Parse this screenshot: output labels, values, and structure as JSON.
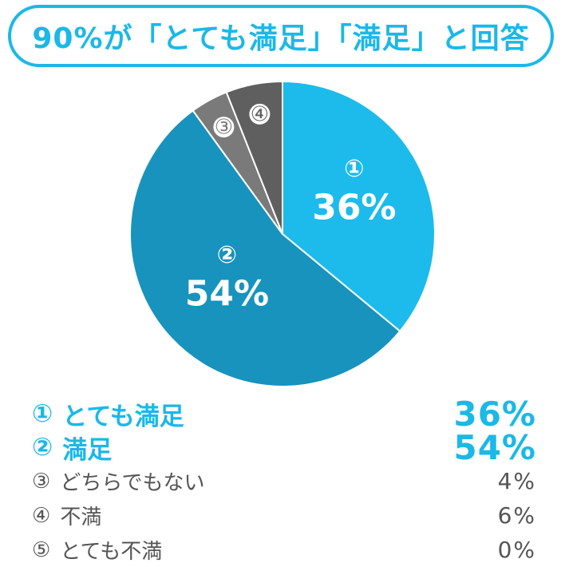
{
  "title": "90%が「とても満足」「満足」と回答",
  "colors": {
    "accent": "#1bb8e8",
    "very_satisfied": "#1cbbec",
    "satisfied": "#1793be",
    "neutral": "#7a7a7a",
    "dissatisfied": "#5f5f5f",
    "very_dissatisfied": "#444444",
    "legend_text_muted": "#555555"
  },
  "chart_data": {
    "type": "pie",
    "start": "12 o'clock, clockwise",
    "categories": [
      "とても満足",
      "満足",
      "どちらでもない",
      "不満",
      "とても不満"
    ],
    "values": [
      36,
      54,
      4,
      6,
      0
    ],
    "slice_markers": [
      "①",
      "②",
      "③",
      "④",
      "⑤"
    ],
    "value_labels": [
      "36%",
      "54%",
      "4%",
      "6%",
      "0%"
    ],
    "inside_percent_shown": [
      true,
      true,
      false,
      false,
      false
    ]
  },
  "legend": [
    {
      "marker": "①",
      "label": "とても満足",
      "value": "36%"
    },
    {
      "marker": "②",
      "label": "満足",
      "value": "54%"
    },
    {
      "marker": "③",
      "label": "どちらでもない",
      "value": "4%"
    },
    {
      "marker": "④",
      "label": "不満",
      "value": "6%"
    },
    {
      "marker": "⑤",
      "label": "とても不満",
      "value": "0%"
    }
  ]
}
